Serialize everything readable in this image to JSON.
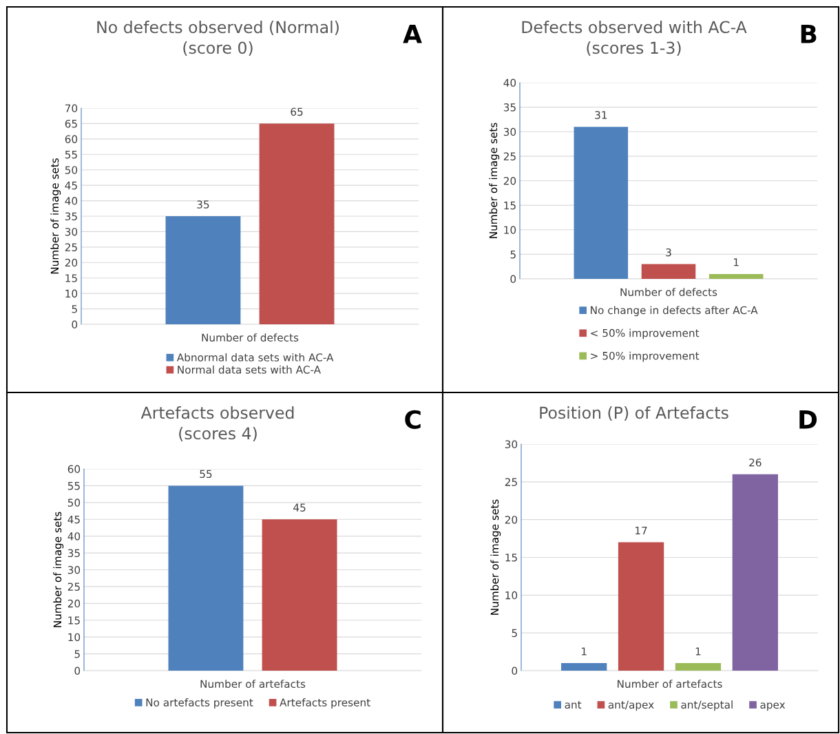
{
  "chart_data": [
    {
      "type": "bar",
      "title": "No defects observed (Normal)\n(score 0)",
      "xlabel": "Number of defects",
      "ylabel": "Number of image sets",
      "categories": [
        null
      ],
      "annotations": [
        "A"
      ],
      "series": [
        {
          "name": "Abnormal data sets with AC-A",
          "color": "#4f81bd",
          "values": [
            35
          ]
        },
        {
          "name": "Normal data sets with AC-A",
          "color": "#c0504d",
          "values": [
            65
          ]
        }
      ],
      "ylim": [
        0,
        70
      ],
      "yticks": [
        0,
        5,
        10,
        15,
        20,
        25,
        30,
        35,
        40,
        45,
        50,
        55,
        60,
        65,
        70
      ],
      "grid": "y",
      "legend": "bottom",
      "data_labels": true
    },
    {
      "type": "bar",
      "title": "Defects observed with AC-A\n(scores 1-3)",
      "xlabel": "Number of defects",
      "ylabel": "Number of image sets",
      "categories": [
        null
      ],
      "annotations": [
        "B"
      ],
      "series": [
        {
          "name": "No change in defects after AC-A",
          "color": "#4f81bd",
          "values": [
            31
          ]
        },
        {
          "name": "< 50% improvement",
          "color": "#c0504d",
          "values": [
            3
          ]
        },
        {
          "name": "> 50% improvement",
          "color": "#9bbb59",
          "values": [
            1
          ]
        }
      ],
      "ylim": [
        0,
        40
      ],
      "yticks": [
        0,
        5,
        10,
        15,
        20,
        25,
        30,
        35,
        40
      ],
      "grid": "y",
      "legend": "bottom",
      "data_labels": true
    },
    {
      "type": "bar",
      "title": "Artefacts observed\n(scores 4)",
      "xlabel": "Number of artefacts",
      "ylabel": "Number of image sets",
      "categories": [
        null
      ],
      "annotations": [
        "C"
      ],
      "series": [
        {
          "name": "No artefacts present",
          "color": "#4f81bd",
          "values": [
            55
          ]
        },
        {
          "name": "Artefacts present",
          "color": "#c0504d",
          "values": [
            45
          ]
        }
      ],
      "ylim": [
        0,
        60
      ],
      "yticks": [
        0,
        5,
        10,
        15,
        20,
        25,
        30,
        35,
        40,
        45,
        50,
        55,
        60
      ],
      "grid": "y",
      "legend": "bottom",
      "data_labels": true
    },
    {
      "type": "bar",
      "title": "Position (P) of Artefacts",
      "xlabel": "Number of artefacts",
      "ylabel": "Number of image sets",
      "categories": [
        null
      ],
      "annotations": [
        "D"
      ],
      "series": [
        {
          "name": "ant",
          "color": "#4f81bd",
          "values": [
            1
          ]
        },
        {
          "name": "ant/apex",
          "color": "#c0504d",
          "values": [
            17
          ]
        },
        {
          "name": "ant/septal",
          "color": "#9bbb59",
          "values": [
            1
          ]
        },
        {
          "name": "apex",
          "color": "#8064a2",
          "values": [
            26
          ]
        }
      ],
      "ylim": [
        0,
        30
      ],
      "yticks": [
        0,
        5,
        10,
        15,
        20,
        25,
        30
      ],
      "grid": "y",
      "legend": "bottom",
      "data_labels": true
    }
  ]
}
